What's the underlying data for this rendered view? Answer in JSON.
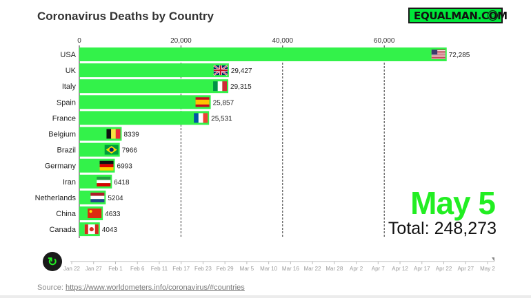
{
  "title": "Coronavirus Deaths by Country",
  "logo": {
    "text": "EQUALMAN.COM",
    "badge_icon": "pin-shield-icon"
  },
  "date_label": "May 5",
  "total_label": "Total: 248,273",
  "source": {
    "prefix": "Source: ",
    "link_text": "https://www.worldometers.info/coronavirus/#countries"
  },
  "colors": {
    "bar": "#33f24a",
    "accent": "#22ee22",
    "logo_bg": "#00e63a"
  },
  "timeline": {
    "play_icon": "replay-icon",
    "ticks": [
      "Jan 22",
      "Jan 27",
      "Feb 1",
      "Feb 6",
      "Feb 11",
      "Feb 17",
      "Feb 23",
      "Feb 29",
      "Mar 5",
      "Mar 10",
      "Mar 16",
      "Mar 22",
      "Mar 28",
      "Apr 2",
      "Apr 7",
      "Apr 12",
      "Apr 17",
      "Apr 22",
      "Apr 27",
      "May 2"
    ]
  },
  "chart_data": {
    "type": "bar",
    "orientation": "horizontal",
    "title": "Coronavirus Deaths by Country",
    "xlim": [
      0,
      73000
    ],
    "x_ticks": [
      0,
      20000,
      40000,
      60000
    ],
    "x_tick_labels": [
      "0",
      "20,000",
      "40,000",
      "60,000"
    ],
    "grid": "vertical dashed",
    "categories": [
      "USA",
      "UK",
      "Italy",
      "Spain",
      "France",
      "Belgium",
      "Brazil",
      "Germany",
      "Iran",
      "Netherlands",
      "China",
      "Canada"
    ],
    "values": [
      72285,
      29427,
      29315,
      25857,
      25531,
      8339,
      7966,
      6993,
      6418,
      5204,
      4633,
      4043
    ],
    "value_labels": [
      "72,285",
      "29,427",
      "29,315",
      "25,857",
      "25,531",
      "8339",
      "7966",
      "6993",
      "6418",
      "5204",
      "4633",
      "4043"
    ],
    "flags": [
      "us",
      "uk",
      "italy",
      "spain",
      "france",
      "belgium",
      "brazil",
      "germany",
      "iran",
      "netherlands",
      "china",
      "canada"
    ]
  }
}
